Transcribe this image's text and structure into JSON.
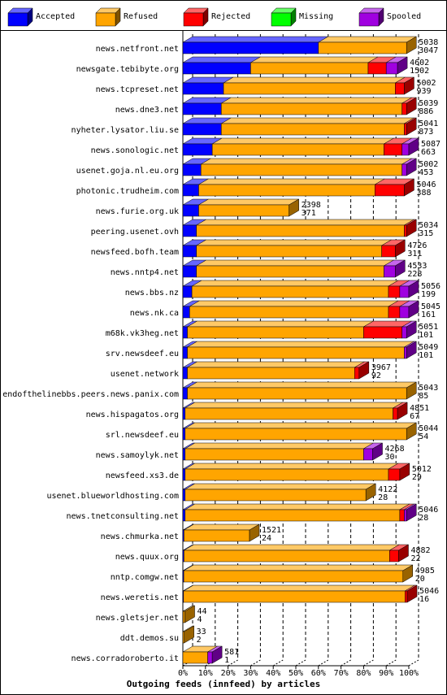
{
  "chart_data": {
    "type": "bar",
    "orientation": "horizontal",
    "stacked": true,
    "title": "Outgoing feeds (innfeed) by articles",
    "categories": [
      "news.netfront.net",
      "newsgate.tebibyte.org",
      "news.tcpreset.net",
      "news.dne3.net",
      "nyheter.lysator.liu.se",
      "news.sonologic.net",
      "usenet.goja.nl.eu.org",
      "photonic.trudheim.com",
      "news.furie.org.uk",
      "peering.usenet.ovh",
      "newsfeed.bofh.team",
      "news.nntp4.net",
      "news.bbs.nz",
      "news.nk.ca",
      "m68k.vk3heg.net",
      "srv.newsdeef.eu",
      "usenet.network",
      "endofthelinebbs.peers.news.panix.com",
      "news.hispagatos.org",
      "srl.newsdeef.eu",
      "news.samoylyk.net",
      "newsfeed.xs3.de",
      "usenet.blueworldhosting.com",
      "news.tnetconsulting.net",
      "news.chmurka.net",
      "news.quux.org",
      "nntp.comgw.net",
      "news.weretis.net",
      "news.gletsjer.net",
      "ddt.demos.su",
      "news.corradoroberto.it"
    ],
    "offered": [
      5038,
      4602,
      5002,
      5039,
      5041,
      5087,
      5002,
      5046,
      2398,
      5034,
      4726,
      4533,
      5056,
      5045,
      5051,
      5049,
      3967,
      5043,
      4851,
      5044,
      4268,
      5012,
      4122,
      5046,
      1521,
      4882,
      4985,
      5046,
      44,
      33,
      581
    ],
    "accepted": [
      3047,
      1502,
      939,
      886,
      873,
      663,
      453,
      388,
      371,
      315,
      311,
      228,
      199,
      161,
      101,
      101,
      92,
      85,
      67,
      54,
      30,
      29,
      28,
      28,
      24,
      22,
      20,
      16,
      4,
      2,
      1
    ],
    "series": [
      {
        "name": "Accepted",
        "color": "#0000ff",
        "values": [
          60,
          30,
          18,
          17,
          17,
          13,
          8,
          7,
          7,
          6,
          6,
          6,
          4,
          3,
          2,
          2,
          2,
          2,
          1,
          1,
          1,
          1,
          1,
          1,
          0.5,
          0.5,
          0.4,
          0.3,
          0.1,
          0,
          0
        ]
      },
      {
        "name": "Refused",
        "color": "#ffa500",
        "values": [
          39,
          52,
          76,
          80,
          81,
          76,
          89,
          78,
          40,
          92,
          82,
          83,
          87,
          88,
          78,
          96,
          74,
          97,
          92,
          98,
          79,
          90,
          80,
          95,
          29,
          91,
          97,
          98,
          0.8,
          0.6,
          11
        ]
      },
      {
        "name": "Rejected",
        "color": "#ff0000",
        "values": [
          0,
          8,
          4,
          2,
          1,
          8,
          0,
          13,
          0,
          1,
          6,
          0,
          5,
          5,
          17,
          0,
          2,
          0,
          2,
          0,
          0,
          5,
          0,
          2,
          0,
          4,
          0,
          1,
          0,
          0,
          0
        ]
      },
      {
        "name": "Missing",
        "color": "#00ff00",
        "values": [
          0,
          0,
          0,
          0,
          0,
          0,
          0,
          0,
          0,
          0,
          0,
          0,
          0,
          0,
          0,
          0,
          0,
          0,
          0,
          0,
          0,
          0,
          0,
          0,
          0,
          0,
          0,
          0,
          0,
          0,
          0
        ]
      },
      {
        "name": "Spooled",
        "color": "#a000e0",
        "values": [
          0,
          5,
          0,
          0,
          0,
          3,
          2,
          0,
          0,
          0,
          0,
          5,
          4,
          4,
          2,
          1,
          0,
          0,
          0,
          0,
          4,
          0,
          0,
          1,
          0,
          0,
          0,
          0,
          0,
          0,
          2
        ]
      }
    ],
    "xlim": [
      0,
      100
    ],
    "xticks": [
      {
        "value": 0,
        "label": "0%"
      },
      {
        "value": 10,
        "label": "10%"
      },
      {
        "value": 20,
        "label": "20%"
      },
      {
        "value": 30,
        "label": "30%"
      },
      {
        "value": 40,
        "label": "40%"
      },
      {
        "value": 50,
        "label": "50%"
      },
      {
        "value": 60,
        "label": "60%"
      },
      {
        "value": 70,
        "label": "70%"
      },
      {
        "value": 80,
        "label": "80%"
      },
      {
        "value": 90,
        "label": "90%"
      },
      {
        "value": 100,
        "label": "100%"
      }
    ],
    "grid": true
  }
}
